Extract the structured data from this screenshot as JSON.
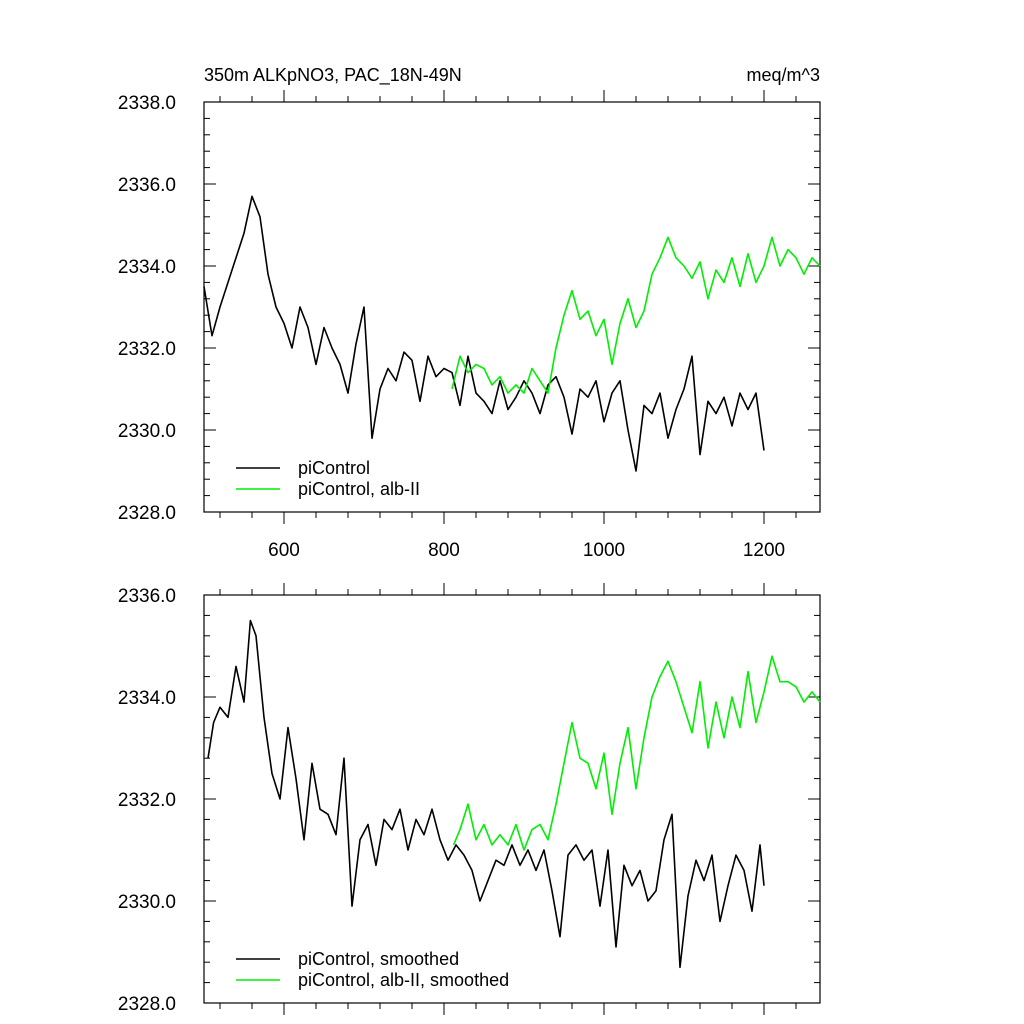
{
  "chart_data": [
    {
      "type": "line",
      "title_left": "350m ALKpNO3, PAC_18N-49N",
      "title_right": "meq/m^3",
      "xlim": [
        500,
        1270
      ],
      "ylim": [
        2328.0,
        2338.0
      ],
      "xticks": [
        600,
        800,
        1000,
        1200
      ],
      "xtick_labels": [
        "600",
        "800",
        "1000",
        "1200"
      ],
      "yticks": [
        2328.0,
        2330.0,
        2332.0,
        2334.0,
        2336.0,
        2338.0
      ],
      "ytick_labels": [
        "2328.0",
        "2330.0",
        "2332.0",
        "2334.0",
        "2336.0",
        "2338.0"
      ],
      "legend_position": "bottom-left",
      "series": [
        {
          "name": "piControl",
          "color": "#000000",
          "x": [
            500,
            510,
            520,
            530,
            540,
            550,
            560,
            570,
            580,
            590,
            600,
            610,
            620,
            630,
            640,
            650,
            660,
            670,
            680,
            690,
            700,
            710,
            720,
            730,
            740,
            750,
            760,
            770,
            780,
            790,
            800,
            810,
            820,
            830,
            840,
            850,
            860,
            870,
            880,
            890,
            900,
            910,
            920,
            930,
            940,
            950,
            960,
            970,
            980,
            990,
            1000,
            1010,
            1020,
            1030,
            1040,
            1050,
            1060,
            1070,
            1080,
            1090,
            1100,
            1110,
            1120,
            1130,
            1140,
            1150,
            1160,
            1170,
            1180,
            1190,
            1200
          ],
          "values": [
            2333.5,
            2332.3,
            2333.0,
            2333.6,
            2334.2,
            2334.8,
            2335.7,
            2335.2,
            2333.8,
            2333.0,
            2332.6,
            2332.0,
            2333.0,
            2332.5,
            2331.6,
            2332.5,
            2332.0,
            2331.6,
            2330.9,
            2332.1,
            2333.0,
            2329.8,
            2331.0,
            2331.5,
            2331.2,
            2331.9,
            2331.7,
            2330.7,
            2331.8,
            2331.3,
            2331.5,
            2331.4,
            2330.6,
            2331.8,
            2330.9,
            2330.7,
            2330.4,
            2331.2,
            2330.5,
            2330.8,
            2331.2,
            2330.9,
            2330.4,
            2331.1,
            2331.3,
            2330.8,
            2329.9,
            2331.0,
            2330.8,
            2331.2,
            2330.2,
            2330.9,
            2331.2,
            2330.0,
            2329.0,
            2330.6,
            2330.4,
            2330.9,
            2329.8,
            2330.5,
            2331.0,
            2331.8,
            2329.4,
            2330.7,
            2330.4,
            2330.8,
            2330.1,
            2330.9,
            2330.5,
            2330.9,
            2329.5
          ]
        },
        {
          "name": "piControl, alb-II",
          "color": "#00ee00",
          "x": [
            810,
            820,
            830,
            840,
            850,
            860,
            870,
            880,
            890,
            900,
            910,
            920,
            930,
            940,
            950,
            960,
            970,
            980,
            990,
            1000,
            1010,
            1020,
            1030,
            1040,
            1050,
            1060,
            1070,
            1080,
            1090,
            1100,
            1110,
            1120,
            1130,
            1140,
            1150,
            1160,
            1170,
            1180,
            1190,
            1200,
            1210,
            1220,
            1230,
            1240,
            1250,
            1260,
            1270
          ],
          "values": [
            2331.0,
            2331.8,
            2331.4,
            2331.6,
            2331.5,
            2331.1,
            2331.3,
            2330.9,
            2331.1,
            2330.9,
            2331.5,
            2331.2,
            2330.9,
            2332.0,
            2332.8,
            2333.4,
            2332.7,
            2332.9,
            2332.3,
            2332.7,
            2331.6,
            2332.6,
            2333.2,
            2332.5,
            2332.9,
            2333.8,
            2334.2,
            2334.7,
            2334.2,
            2334.0,
            2333.7,
            2334.1,
            2333.2,
            2333.9,
            2333.6,
            2334.2,
            2333.5,
            2334.3,
            2333.6,
            2334.0,
            2334.7,
            2334.0,
            2334.4,
            2334.2,
            2333.8,
            2334.2,
            2334.0
          ]
        }
      ]
    },
    {
      "type": "line",
      "xlim": [
        500,
        1270
      ],
      "ylim": [
        2328.0,
        2336.0
      ],
      "xticks": [
        600,
        800,
        1000,
        1200
      ],
      "yticks": [
        2328.0,
        2330.0,
        2332.0,
        2334.0,
        2336.0
      ],
      "ytick_labels": [
        "2328.0",
        "2330.0",
        "2332.0",
        "2334.0",
        "2336.0"
      ],
      "legend_position": "bottom-left",
      "series": [
        {
          "name": "piControl, smoothed",
          "color": "#000000",
          "x": [
            505,
            512,
            520,
            530,
            540,
            550,
            558,
            565,
            575,
            585,
            595,
            605,
            615,
            625,
            635,
            645,
            655,
            665,
            675,
            685,
            695,
            705,
            715,
            725,
            735,
            745,
            755,
            765,
            775,
            785,
            795,
            805,
            815,
            825,
            835,
            845,
            855,
            865,
            875,
            885,
            895,
            905,
            915,
            925,
            935,
            945,
            955,
            965,
            975,
            985,
            995,
            1005,
            1015,
            1025,
            1035,
            1045,
            1055,
            1065,
            1075,
            1085,
            1095,
            1105,
            1115,
            1125,
            1135,
            1145,
            1155,
            1165,
            1175,
            1185,
            1195,
            1200
          ],
          "values": [
            2332.8,
            2333.5,
            2333.8,
            2333.6,
            2334.6,
            2333.9,
            2335.5,
            2335.2,
            2333.6,
            2332.5,
            2332.0,
            2333.4,
            2332.4,
            2331.2,
            2332.7,
            2331.8,
            2331.7,
            2331.3,
            2332.8,
            2329.9,
            2331.2,
            2331.5,
            2330.7,
            2331.6,
            2331.4,
            2331.8,
            2331.0,
            2331.6,
            2331.3,
            2331.8,
            2331.2,
            2330.8,
            2331.1,
            2330.9,
            2330.6,
            2330.0,
            2330.4,
            2330.8,
            2330.7,
            2331.1,
            2330.7,
            2331.0,
            2330.6,
            2331.0,
            2330.2,
            2329.3,
            2330.9,
            2331.1,
            2330.8,
            2331.0,
            2329.9,
            2331.0,
            2329.1,
            2330.7,
            2330.3,
            2330.6,
            2330.0,
            2330.2,
            2331.2,
            2331.7,
            2328.7,
            2330.1,
            2330.8,
            2330.4,
            2330.9,
            2329.6,
            2330.3,
            2330.9,
            2330.6,
            2329.8,
            2331.1,
            2330.3
          ]
        },
        {
          "name": "piControl, alb-II, smoothed",
          "color": "#00ee00",
          "x": [
            812,
            820,
            830,
            840,
            850,
            860,
            870,
            880,
            890,
            900,
            910,
            920,
            930,
            940,
            950,
            960,
            970,
            980,
            990,
            1000,
            1010,
            1020,
            1030,
            1040,
            1050,
            1060,
            1070,
            1080,
            1090,
            1100,
            1110,
            1120,
            1130,
            1140,
            1150,
            1160,
            1170,
            1180,
            1190,
            1200,
            1210,
            1220,
            1230,
            1240,
            1250,
            1260,
            1270
          ],
          "values": [
            2331.1,
            2331.4,
            2331.9,
            2331.2,
            2331.5,
            2331.1,
            2331.3,
            2331.1,
            2331.5,
            2331.0,
            2331.4,
            2331.5,
            2331.2,
            2331.9,
            2332.7,
            2333.5,
            2332.8,
            2332.7,
            2332.2,
            2332.9,
            2331.7,
            2332.7,
            2333.4,
            2332.2,
            2333.2,
            2334.0,
            2334.4,
            2334.7,
            2334.3,
            2333.8,
            2333.3,
            2334.3,
            2333.0,
            2333.9,
            2333.2,
            2334.0,
            2333.4,
            2334.5,
            2333.5,
            2334.1,
            2334.8,
            2334.3,
            2334.3,
            2334.2,
            2333.9,
            2334.1,
            2333.9
          ]
        }
      ]
    }
  ]
}
